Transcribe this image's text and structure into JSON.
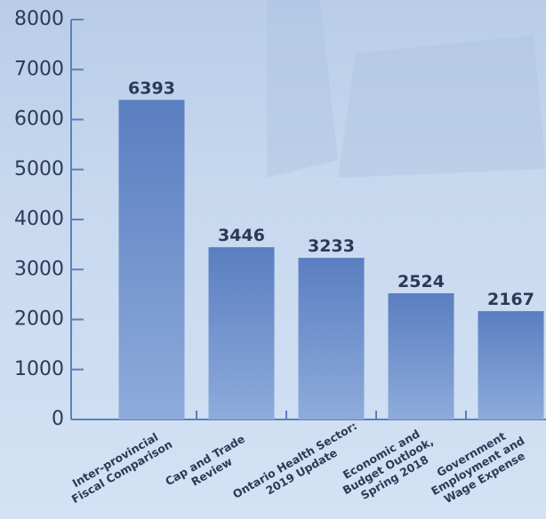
{
  "chart_data": {
    "type": "bar",
    "categories": [
      "Inter-provincial\nFiscal Comparison",
      "Cap and Trade\nReview",
      "Ontario Health Sector:\n2019 Update",
      "Economic and\nBudget Outlook,\nSpring 2018",
      "Government\nEmployment and\nWage Expense"
    ],
    "values": [
      6393,
      3446,
      3233,
      2524,
      2167
    ],
    "color": "#5b7fc0",
    "ylim": [
      0,
      8000
    ],
    "yticks": [
      0,
      1000,
      2000,
      3000,
      4000,
      5000,
      6000,
      7000,
      8000
    ]
  }
}
